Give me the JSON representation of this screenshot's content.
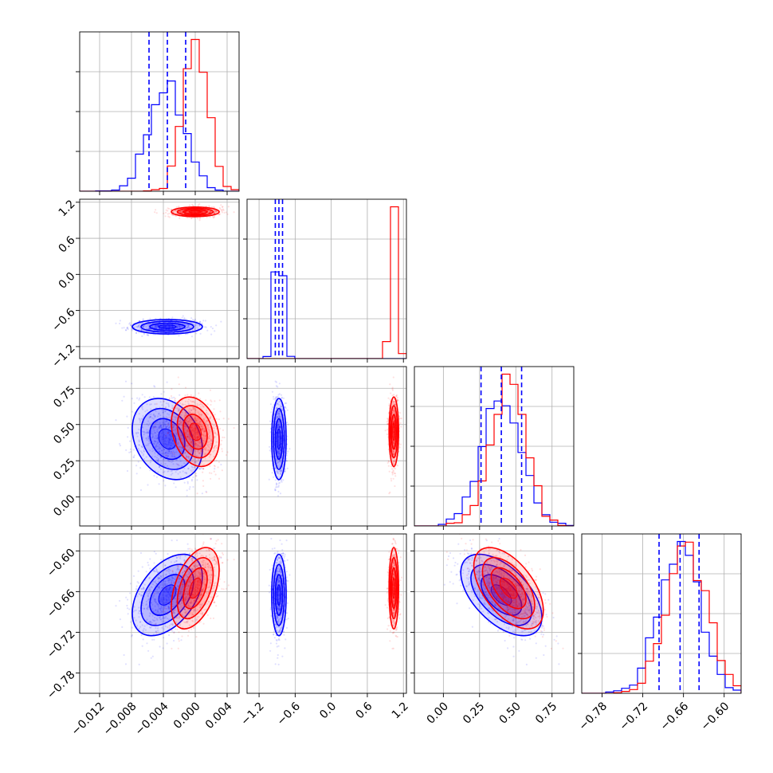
{
  "chart_data": {
    "type": "corner",
    "parameters": 4,
    "grid": true,
    "series": [
      {
        "color": "#0000ff",
        "mean": [
          -0.0035,
          -0.87,
          0.4,
          -0.665
        ],
        "sd": [
          0.0022,
          0.06,
          0.14,
          0.03
        ],
        "quantiles": [
          [
            -0.0058,
            -0.0035,
            -0.0012
          ],
          [
            -0.93,
            -0.87,
            -0.81
          ],
          [
            0.26,
            0.4,
            0.54
          ],
          [
            -0.696,
            -0.665,
            -0.637
          ]
        ]
      },
      {
        "color": "#ff0000",
        "mean": [
          0.0,
          1.04,
          0.45,
          -0.655
        ],
        "sd": [
          0.0015,
          0.04,
          0.12,
          0.03
        ],
        "quantiles": null
      }
    ],
    "correlations": {
      "1-0": 0.0,
      "2-0": -0.25,
      "2-1": 0.0,
      "3-0": 0.45,
      "3-1": 0.0,
      "3-2": -0.55
    },
    "axes": [
      {
        "range": [
          -0.0145,
          0.0055
        ],
        "ticks": [
          -0.012,
          -0.008,
          -0.004,
          0.0,
          0.004
        ],
        "tick_labels": [
          "−0.012",
          "−0.008",
          "−0.004",
          "0.000",
          "0.004"
        ]
      },
      {
        "range": [
          -1.4,
          1.25
        ],
        "ticks": [
          -1.2,
          -0.6,
          0.0,
          0.6,
          1.2
        ],
        "tick_labels": [
          "−1.2",
          "−0.6",
          "0.0",
          "0.6",
          "1.2"
        ]
      },
      {
        "range": [
          -0.2,
          0.9
        ],
        "ticks": [
          0.0,
          0.25,
          0.5,
          0.75
        ],
        "tick_labels": [
          "0.00",
          "0.25",
          "0.50",
          "0.75"
        ]
      },
      {
        "range": [
          -0.81,
          -0.575
        ],
        "ticks": [
          -0.78,
          -0.72,
          -0.66,
          -0.6
        ],
        "tick_labels": [
          "−0.78",
          "−0.72",
          "−0.66",
          "−0.60"
        ]
      }
    ]
  }
}
